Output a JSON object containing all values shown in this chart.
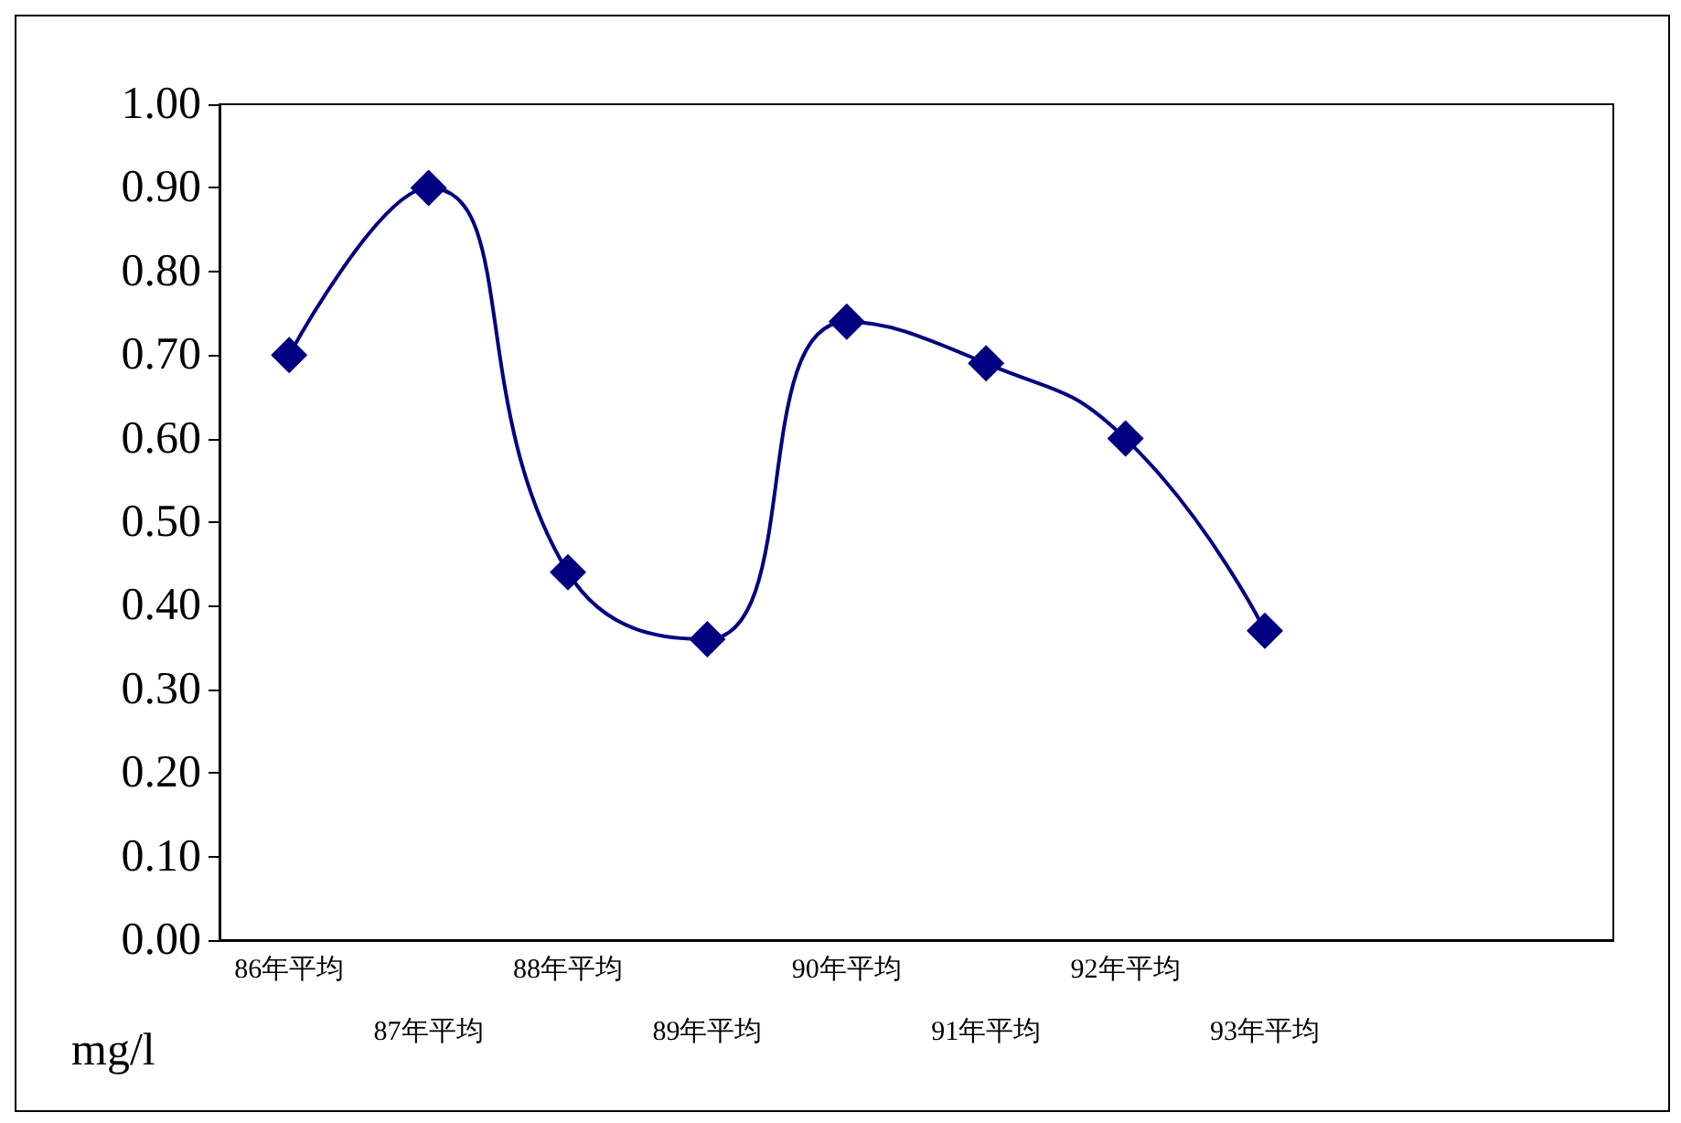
{
  "chart_data": {
    "type": "line",
    "ylabel": "mg/l",
    "categories": [
      "86年平均",
      "87年平均",
      "88年平均",
      "89年平均",
      "90年平均",
      "91年平均",
      "92年平均",
      "93年平均",
      null,
      null
    ],
    "series": [
      {
        "color": "#000080",
        "values": [
          0.7,
          0.9,
          0.44,
          0.36,
          0.74,
          0.69,
          0.6,
          0.37,
          null,
          null
        ]
      }
    ],
    "ylim": [
      0,
      1
    ],
    "yticks": [
      {
        "value": 0,
        "label": "0.00"
      },
      {
        "value": 0.1,
        "label": "0.10"
      },
      {
        "value": 0.2,
        "label": "0.20"
      },
      {
        "value": 0.3,
        "label": "0.30"
      },
      {
        "value": 0.4,
        "label": "0.40"
      },
      {
        "value": 0.5,
        "label": "0.50"
      },
      {
        "value": 0.6,
        "label": "0.60"
      },
      {
        "value": 0.7,
        "label": "0.70"
      },
      {
        "value": 0.8,
        "label": "0.80"
      },
      {
        "value": 0.9,
        "label": "0.90"
      },
      {
        "value": 1,
        "label": "1.00"
      }
    ],
    "marker": "diamond",
    "line_style": "solid"
  }
}
